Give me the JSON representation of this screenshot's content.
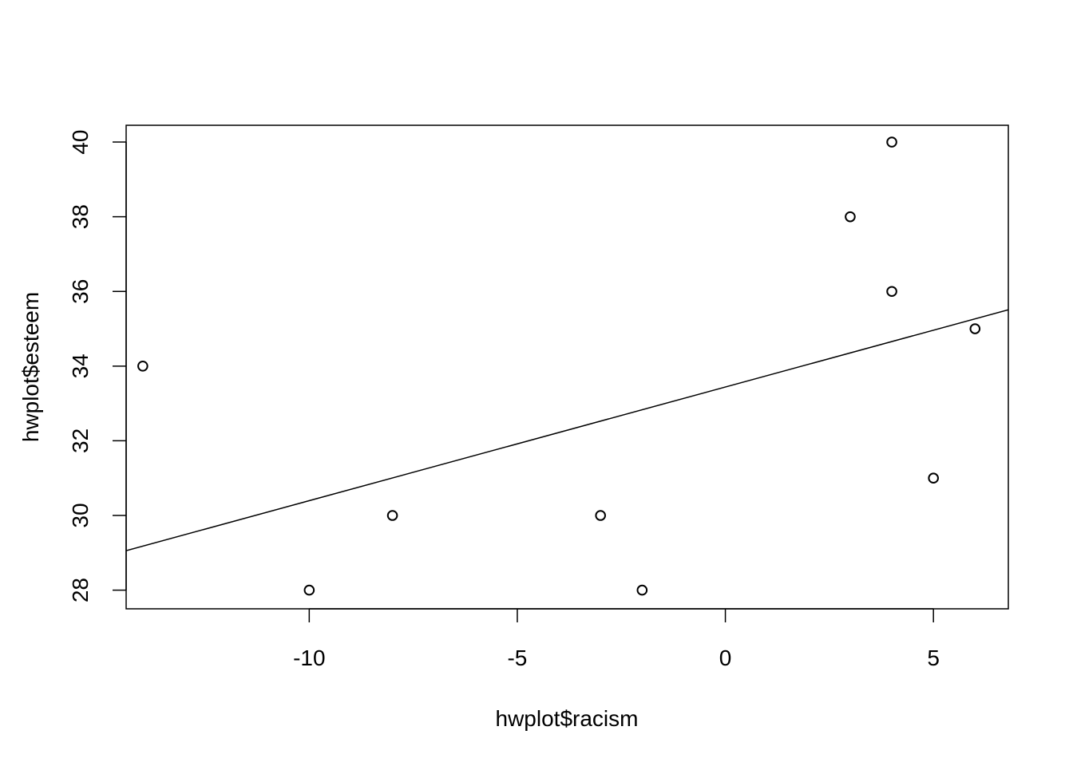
{
  "chart_data": {
    "type": "scatter",
    "title": "",
    "xlabel": "hwplot$racism",
    "ylabel": "hwplot$esteem",
    "xlim": [
      -14.4,
      6.8
    ],
    "ylim": [
      27.5,
      40.45
    ],
    "x_ticks": [
      -10,
      -5,
      0,
      5
    ],
    "y_ticks": [
      28,
      30,
      32,
      34,
      36,
      38,
      40
    ],
    "grid": false,
    "legend": "none",
    "points": [
      {
        "x": -14,
        "y": 34
      },
      {
        "x": -10,
        "y": 28
      },
      {
        "x": -8,
        "y": 30
      },
      {
        "x": -3,
        "y": 30
      },
      {
        "x": -2,
        "y": 28
      },
      {
        "x": 3,
        "y": 38
      },
      {
        "x": 4,
        "y": 40
      },
      {
        "x": 4,
        "y": 36
      },
      {
        "x": 5,
        "y": 31
      },
      {
        "x": 6,
        "y": 35
      }
    ],
    "regression_line": {
      "intercept": 33.44,
      "slope": 0.3044
    },
    "colors": {
      "points": "#000000",
      "line": "#000000",
      "frame": "#000000"
    }
  }
}
